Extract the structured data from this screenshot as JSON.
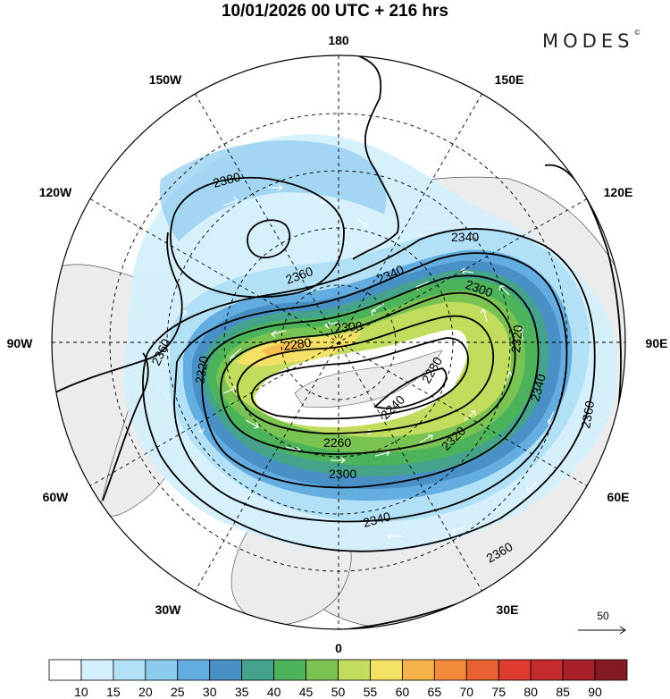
{
  "header": {
    "title": "10/01/2026  00 UTC  + 216 hrs",
    "brand": "MODES"
  },
  "longitude_labels": {
    "top": "180",
    "bottom": "0",
    "left": "90W",
    "right": "90E",
    "upper_left_1": "150W",
    "upper_left_2": "120W",
    "lower_left_1": "60W",
    "lower_left_2": "30W",
    "upper_right_1": "150E",
    "upper_right_2": "120E",
    "lower_right_1": "60E",
    "lower_right_2": "30E"
  },
  "contour_labels": {
    "c2380": "2380",
    "c2360a": "2360",
    "c2360b": "2360",
    "c2360c": "2360",
    "c2360d": "2360",
    "c2340a": "2340",
    "c2340b": "2340",
    "c2340c": "2340",
    "c2340d": "2340",
    "c2320a": "2320",
    "c2320b": "2320",
    "c2320c": "2320",
    "c2300a": "2300",
    "c2300b": "2300",
    "c2300c": "2300",
    "c2280a": "2280",
    "c2280b": "2280",
    "c2260a": "2260",
    "c2240a": "2240"
  },
  "vector_reference": {
    "label": "50"
  },
  "colorbar": {
    "colors": [
      "#ffffff",
      "#d4f0fc",
      "#b2e0f6",
      "#8ccbee",
      "#64ade0",
      "#4890c6",
      "#44a38a",
      "#4db35b",
      "#79c353",
      "#c2dc5e",
      "#f5e165",
      "#f6b349",
      "#f18b3b",
      "#ea6133",
      "#dd3a30",
      "#c42a2e",
      "#a81f2a",
      "#861a22"
    ],
    "ticks": [
      "10",
      "15",
      "20",
      "25",
      "30",
      "35",
      "40",
      "45",
      "50",
      "55",
      "60",
      "65",
      "70",
      "75",
      "80",
      "85",
      "90"
    ]
  }
}
